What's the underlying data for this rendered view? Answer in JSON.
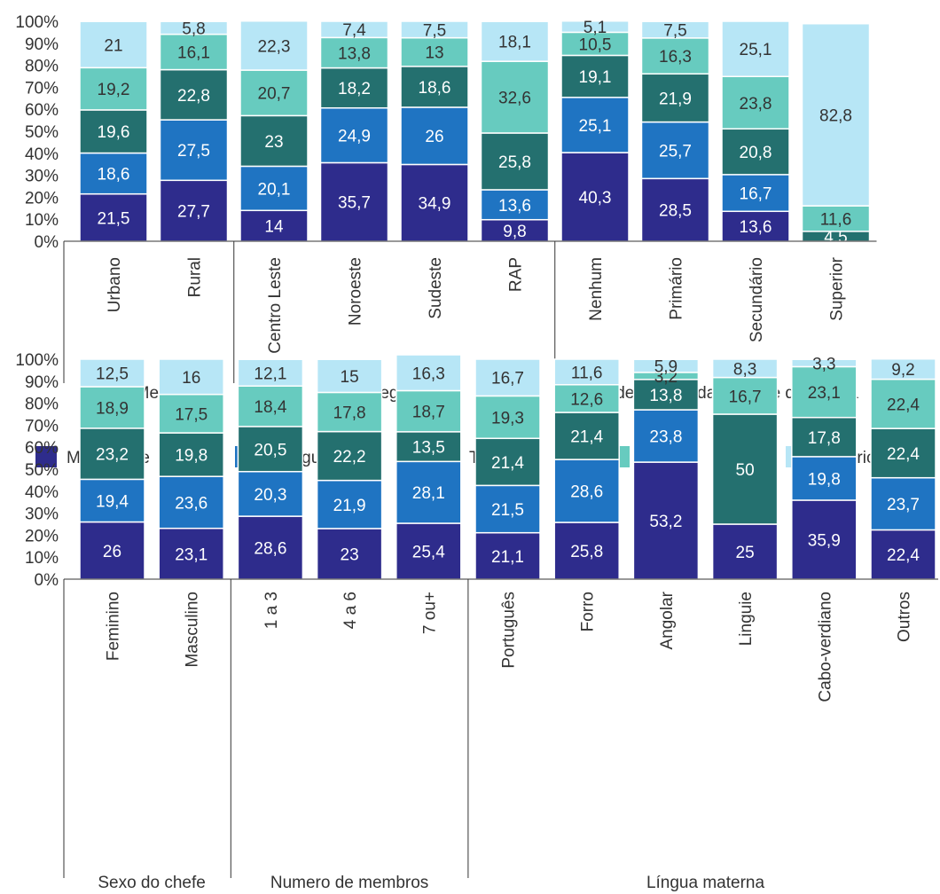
{
  "colors": {
    "series": [
      "#2e2c8c",
      "#1f74c2",
      "#24706f",
      "#67cbbf",
      "#b7e6f6"
    ],
    "label_light": "#ffffff",
    "label_dark": "#333333",
    "axis_text": "#333333",
    "axis_line": "#333333"
  },
  "legend": {
    "placement": "between-charts",
    "items": [
      "Mais pobre",
      "O segundo",
      "Terceiro",
      "Quarto",
      "Mais rico"
    ]
  },
  "chart_data": [
    {
      "type": "bar",
      "stacked": true,
      "ylim": [
        0,
        100
      ],
      "yticks": [
        "0%",
        "10%",
        "20%",
        "30%",
        "40%",
        "50%",
        "60%",
        "70%",
        "80%",
        "90%",
        "100%"
      ],
      "categories": [
        "Urbano",
        "Rural",
        "Centro Leste",
        "Noroeste",
        "Sudeste",
        "RAP",
        "Nenhum",
        "Primário",
        "Secundário",
        "Superior"
      ],
      "groups": [
        {
          "label": "Meio",
          "size": 2
        },
        {
          "label": "Região",
          "size": 4
        },
        {
          "label": "Nível de escolaridade chefe da família",
          "size": 4
        }
      ],
      "series": [
        {
          "name": "Mais pobre",
          "values": [
            21.5,
            27.7,
            14,
            35.7,
            34.9,
            9.8,
            40.3,
            28.5,
            13.6,
            0
          ],
          "labels": [
            "21,5",
            "27,7",
            "14",
            "35,7",
            "34,9",
            "9,8",
            "40,3",
            "28,5",
            "13,6",
            ""
          ]
        },
        {
          "name": "O segundo",
          "values": [
            18.6,
            27.5,
            20.1,
            24.9,
            26,
            13.6,
            25.1,
            25.7,
            16.7,
            0
          ],
          "labels": [
            "18,6",
            "27,5",
            "20,1",
            "24,9",
            "26",
            "13,6",
            "25,1",
            "25,7",
            "16,7",
            ""
          ]
        },
        {
          "name": "Terceiro",
          "values": [
            19.6,
            22.8,
            23,
            18.2,
            18.6,
            25.8,
            19.1,
            21.9,
            20.8,
            4.5
          ],
          "labels": [
            "19,6",
            "22,8",
            "23",
            "18,2",
            "18,6",
            "25,8",
            "19,1",
            "21,9",
            "20,8",
            "4,5"
          ]
        },
        {
          "name": "Quarto",
          "values": [
            19.2,
            16.1,
            20.7,
            13.8,
            13,
            32.6,
            10.5,
            16.3,
            23.8,
            11.6
          ],
          "labels": [
            "19,2",
            "16,1",
            "20,7",
            "13,8",
            "13",
            "32,6",
            "10,5",
            "16,3",
            "23,8",
            "11,6"
          ]
        },
        {
          "name": "Mais rico",
          "values": [
            21,
            5.8,
            22.3,
            7.4,
            7.5,
            18.1,
            5.1,
            7.5,
            25.1,
            82.8
          ],
          "labels": [
            "21",
            "5,8",
            "22,3",
            "7,4",
            "7,5",
            "18,1",
            "5,1",
            "7,5",
            "25,1",
            "82,8"
          ]
        }
      ]
    },
    {
      "type": "bar",
      "stacked": true,
      "ylim": [
        0,
        100
      ],
      "yticks": [
        "0%",
        "10%",
        "20%",
        "30%",
        "40%",
        "50%",
        "60%",
        "70%",
        "80%",
        "90%",
        "100%"
      ],
      "categories": [
        "Feminino",
        "Masculino",
        "1 a 3",
        "4 a 6",
        "7 ou+",
        "Português",
        "Forro",
        "Angolar",
        "Linguie",
        "Cabo-verdiano",
        "Outros"
      ],
      "groups": [
        {
          "label": "Sexo do chefe",
          "size": 2
        },
        {
          "label": "Numero de membros",
          "size": 3
        },
        {
          "label": "Língua materna",
          "size": 6
        }
      ],
      "series": [
        {
          "name": "Mais pobre",
          "values": [
            26,
            23.1,
            28.6,
            23,
            25.4,
            21.1,
            25.8,
            53.2,
            25,
            35.9,
            22.4
          ],
          "labels": [
            "26",
            "23,1",
            "28,6",
            "23",
            "25,4",
            "21,1",
            "25,8",
            "53,2",
            "25",
            "35,9",
            "22,4"
          ]
        },
        {
          "name": "O segundo",
          "values": [
            19.4,
            23.6,
            20.3,
            21.9,
            28.1,
            21.5,
            28.6,
            23.8,
            0,
            19.8,
            23.7
          ],
          "labels": [
            "19,4",
            "23,6",
            "20,3",
            "21,9",
            "28,1",
            "21,5",
            "28,6",
            "23,8",
            "",
            "19,8",
            "23,7"
          ]
        },
        {
          "name": "Terceiro",
          "values": [
            23.2,
            19.8,
            20.5,
            22.2,
            13.5,
            21.4,
            21.4,
            13.8,
            50,
            17.8,
            22.4
          ],
          "labels": [
            "23,2",
            "19,8",
            "20,5",
            "22,2",
            "13,5",
            "21,4",
            "21,4",
            "13,8",
            "50",
            "17,8",
            "22,4"
          ]
        },
        {
          "name": "Quarto",
          "values": [
            18.9,
            17.5,
            18.4,
            17.8,
            18.7,
            19.3,
            12.6,
            3.2,
            16.7,
            23.1,
            22.4
          ],
          "labels": [
            "18,9",
            "17,5",
            "18,4",
            "17,8",
            "18,7",
            "19,3",
            "12,6",
            "3,2",
            "16,7",
            "23,1",
            "22,4"
          ]
        },
        {
          "name": "Mais rico",
          "values": [
            12.5,
            16,
            12.1,
            15,
            16.3,
            16.7,
            11.6,
            5.9,
            8.3,
            3.3,
            9.2
          ],
          "labels": [
            "12,5",
            "16",
            "12,1",
            "15",
            "16,3",
            "16,7",
            "11,6",
            "5,9",
            "8,3",
            "3,3",
            "9,2"
          ]
        }
      ]
    }
  ]
}
